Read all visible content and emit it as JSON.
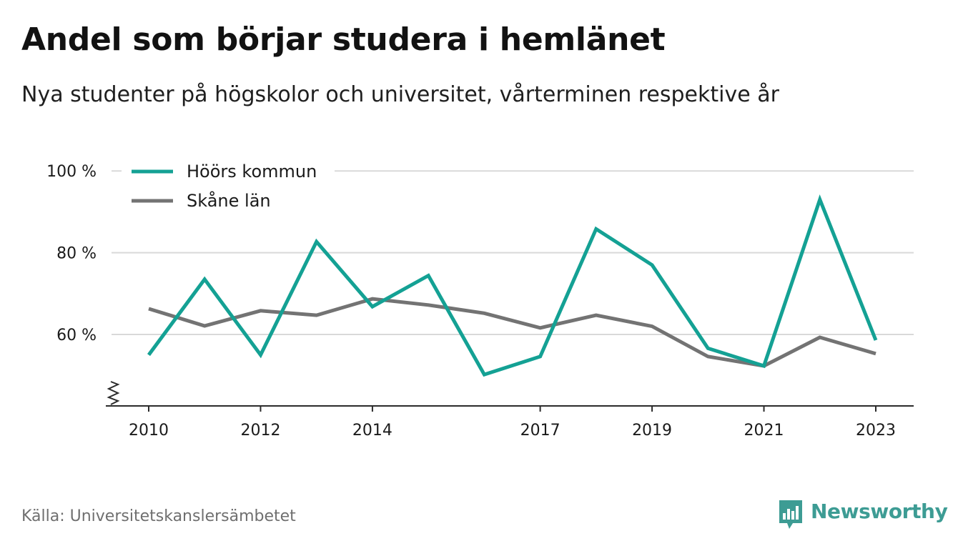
{
  "title": "Andel som börjar studera i hemlänet",
  "subtitle": "Nya studenter på högskolor och universitet, vårterminen respektive år",
  "source": "Källa: Universitetskanslersämbetet",
  "brand": {
    "name": "Newsworthy",
    "icon": "newsworthy-logo-icon",
    "color": "#3d9c94"
  },
  "colors": {
    "series_hoor": "#14a194",
    "series_skane": "#737373",
    "grid": "#d9d9d9",
    "axis": "#2b2b2b",
    "text": "#1a1a1a",
    "source": "#6f6f6f"
  },
  "chart_data": {
    "type": "line",
    "title": "Andel som börjar studera i hemlänet",
    "subtitle": "Nya studenter på högskolor och universitet, vårterminen respektive år",
    "xlabel": "",
    "ylabel": "",
    "x": [
      2010,
      2011,
      2012,
      2013,
      2014,
      2015,
      2016,
      2017,
      2018,
      2019,
      2020,
      2021,
      2022,
      2023
    ],
    "xticks": [
      "2010",
      "2012",
      "2014",
      "2017",
      "2019",
      "2021",
      "2023"
    ],
    "yticks": [
      "60 %",
      "80 %",
      "100 %"
    ],
    "ytick_values": [
      60,
      80,
      100
    ],
    "ylim": [
      43,
      100
    ],
    "axis_break": true,
    "grid": true,
    "legend_position": "top-left",
    "series": [
      {
        "name": "Höörs kommun",
        "color": "#14a194",
        "values": [
          55,
          73.5,
          55,
          82.7,
          66.8,
          74.4,
          50.2,
          54.6,
          85.8,
          77.0,
          56.6,
          52.3,
          93.0,
          58.6
        ]
      },
      {
        "name": "Skåne län",
        "color": "#737373",
        "values": [
          66.3,
          62.1,
          65.8,
          64.7,
          68.7,
          67.2,
          65.2,
          61.6,
          64.7,
          62.0,
          54.6,
          52.3,
          59.3,
          55.3
        ]
      }
    ]
  }
}
